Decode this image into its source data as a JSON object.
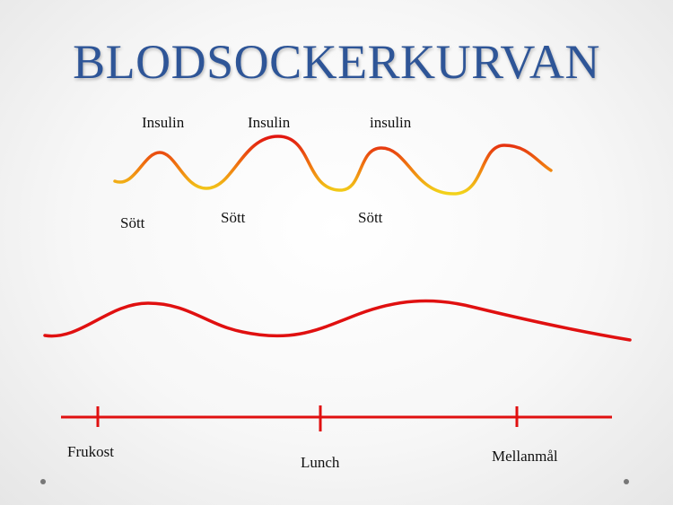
{
  "title": "BLODSOCKERKURVAN",
  "peak_labels": [
    "Insulin",
    "Insulin",
    "insulin"
  ],
  "trough_labels": [
    "Sött",
    "Sött",
    "Sött"
  ],
  "timeline_labels": [
    "Frukost",
    "Lunch",
    "Mellanmål"
  ],
  "colors": {
    "title": "#2e5597",
    "curve_red": "#e01010",
    "curve_orange": "#f07a10",
    "curve_yellow": "#f2d21a",
    "text": "#111111"
  }
}
